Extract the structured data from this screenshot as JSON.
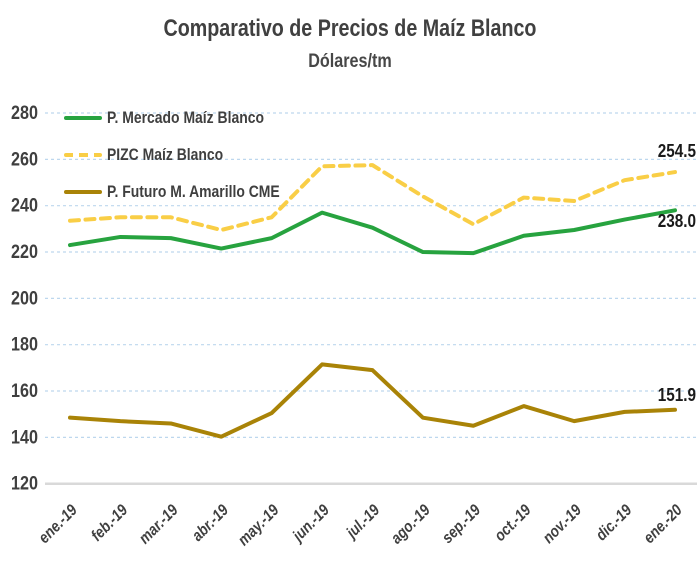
{
  "chart_data": {
    "type": "line",
    "title": "Comparativo de Precios de Maíz Blanco",
    "subtitle": "Dólares/tm",
    "categories": [
      "ene.-19",
      "feb.-19",
      "mar.-19",
      "abr.-19",
      "may.-19",
      "jun.-19",
      "jul.-19",
      "ago.-19",
      "sep.-19",
      "oct.-19",
      "nov.-19",
      "dic.-19",
      "ene.-20"
    ],
    "ylim": [
      120,
      280
    ],
    "yticks": [
      120,
      140,
      160,
      180,
      200,
      220,
      240,
      260,
      280
    ],
    "grid": "horizontal-dashed",
    "legend_position": "top-left-inside",
    "series": [
      {
        "name": "P. Mercado Maíz Blanco",
        "color": "#27a33f",
        "style": "solid",
        "values": [
          223,
          226.5,
          226,
          221.5,
          226,
          237,
          230.5,
          220,
          219.5,
          227,
          229.5,
          234,
          238
        ],
        "end_label": "238.0"
      },
      {
        "name": "PIZC Maíz Blanco",
        "color": "#f9ce46",
        "style": "dashed",
        "values": [
          233.5,
          235,
          235,
          229.5,
          235,
          257,
          257.5,
          244,
          232,
          243.5,
          242,
          251,
          254.5
        ],
        "end_label": "254.5"
      },
      {
        "name": "P. Futuro M. Amarillo CME",
        "color": "#a98307",
        "style": "solid",
        "values": [
          148.5,
          147,
          146,
          140.3,
          150.5,
          171.5,
          169,
          148.5,
          145,
          153.5,
          147,
          151,
          151.9
        ],
        "end_label": "151.9"
      }
    ],
    "colors": {
      "gridline": "#bdd7ee",
      "axis_line": "#d9d9d9",
      "title": "#404040",
      "tick_label": "#3f3f3f",
      "data_label": "#1a1a1a"
    }
  }
}
